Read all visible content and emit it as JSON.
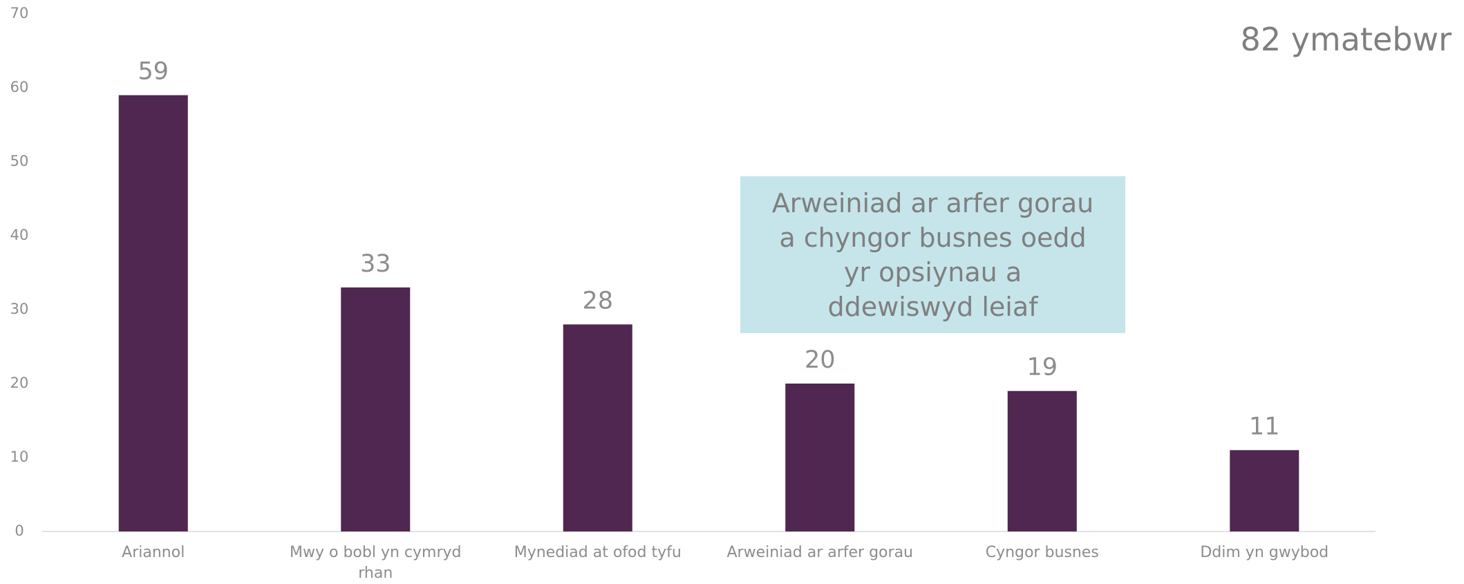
{
  "chart_data": {
    "type": "bar",
    "categories": [
      "Ariannol",
      "Mwy o bobl yn cymryd rhan",
      "Mynediad at ofod tyfu",
      "Arweiniad ar arfer gorau",
      "Cyngor busnes",
      "Ddim yn gwybod"
    ],
    "values": [
      59,
      33,
      28,
      20,
      19,
      11
    ],
    "color": "#4f2750",
    "ylim": [
      0,
      70
    ],
    "yticks": [
      0,
      10,
      20,
      30,
      40,
      50,
      60,
      70
    ],
    "grid": false,
    "annotation": "Arweiniad ar arfer gorau a chyngor busnes oedd yr opsiynau a ddewiswyd leiaf",
    "respondents": "82 ymatebwr"
  }
}
